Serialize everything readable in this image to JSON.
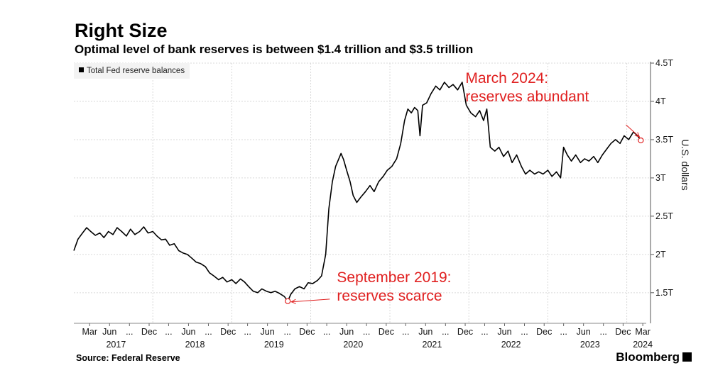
{
  "title": "Right Size",
  "subtitle": "Optimal level of bank reserves is between $1.4 trillion and $3.5 trillion",
  "legend_label": "Total Fed reserve balances",
  "source": "Source: Federal Reserve",
  "brand": "Bloomberg",
  "colors": {
    "line": "#000000",
    "annotation": "#e02020",
    "grid": "#d9d9d9"
  },
  "chart_data": {
    "type": "line",
    "title": "Right Size",
    "subtitle": "Optimal level of bank reserves is between $1.4 trillion and $3.5 trillion",
    "ylabel": "U.S. dollars",
    "ylim": [
      1.1,
      4.5
    ],
    "y_ticks": [
      1.5,
      2,
      2.5,
      3,
      3.5,
      4,
      4.5
    ],
    "y_tick_labels": [
      "1.5T",
      "2T",
      "2.5T",
      "3T",
      "3.5T",
      "4T",
      "4.5T"
    ],
    "y_axis_side": "right",
    "grid": true,
    "legend_position": "top-left",
    "x_range": [
      "2017-01-01",
      "2024-03-31"
    ],
    "month_ticks": [
      {
        "label": "Mar",
        "date": "2017-03"
      },
      {
        "label": "Jun",
        "date": "2017-06"
      },
      {
        "label": "...",
        "date": "2017-09"
      },
      {
        "label": "Dec",
        "date": "2017-12"
      },
      {
        "label": "...",
        "date": "2018-03"
      },
      {
        "label": "Jun",
        "date": "2018-06"
      },
      {
        "label": "...",
        "date": "2018-09"
      },
      {
        "label": "Dec",
        "date": "2018-12"
      },
      {
        "label": "...",
        "date": "2019-03"
      },
      {
        "label": "Jun",
        "date": "2019-06"
      },
      {
        "label": "...",
        "date": "2019-09"
      },
      {
        "label": "Dec",
        "date": "2019-12"
      },
      {
        "label": "...",
        "date": "2020-03"
      },
      {
        "label": "Jun",
        "date": "2020-06"
      },
      {
        "label": "...",
        "date": "2020-09"
      },
      {
        "label": "Dec",
        "date": "2020-12"
      },
      {
        "label": "...",
        "date": "2021-03"
      },
      {
        "label": "Jun",
        "date": "2021-06"
      },
      {
        "label": "...",
        "date": "2021-09"
      },
      {
        "label": "Dec",
        "date": "2021-12"
      },
      {
        "label": "...",
        "date": "2022-03"
      },
      {
        "label": "Jun",
        "date": "2022-06"
      },
      {
        "label": "...",
        "date": "2022-09"
      },
      {
        "label": "Dec",
        "date": "2022-12"
      },
      {
        "label": "...",
        "date": "2023-03"
      },
      {
        "label": "Jun",
        "date": "2023-06"
      },
      {
        "label": "...",
        "date": "2023-09"
      },
      {
        "label": "Dec",
        "date": "2023-12"
      },
      {
        "label": "Mar",
        "date": "2024-03"
      }
    ],
    "year_ticks": [
      {
        "label": "2017",
        "date": "2017-07"
      },
      {
        "label": "2018",
        "date": "2018-07"
      },
      {
        "label": "2019",
        "date": "2019-07"
      },
      {
        "label": "2020",
        "date": "2020-07"
      },
      {
        "label": "2021",
        "date": "2021-07"
      },
      {
        "label": "2022",
        "date": "2022-07"
      },
      {
        "label": "2023",
        "date": "2023-07"
      },
      {
        "label": "2024",
        "date": "2024-03"
      }
    ],
    "series": [
      {
        "name": "Total Fed reserve balances",
        "points": [
          [
            "2017-01-01",
            2.05
          ],
          [
            "2017-01-20",
            2.2
          ],
          [
            "2017-02-10",
            2.28
          ],
          [
            "2017-03-01",
            2.35
          ],
          [
            "2017-03-20",
            2.3
          ],
          [
            "2017-04-10",
            2.25
          ],
          [
            "2017-05-01",
            2.28
          ],
          [
            "2017-05-20",
            2.22
          ],
          [
            "2017-06-10",
            2.3
          ],
          [
            "2017-07-01",
            2.26
          ],
          [
            "2017-07-20",
            2.35
          ],
          [
            "2017-08-10",
            2.3
          ],
          [
            "2017-09-01",
            2.24
          ],
          [
            "2017-09-20",
            2.33
          ],
          [
            "2017-10-10",
            2.26
          ],
          [
            "2017-11-01",
            2.3
          ],
          [
            "2017-11-20",
            2.36
          ],
          [
            "2017-12-10",
            2.28
          ],
          [
            "2018-01-01",
            2.3
          ],
          [
            "2018-01-20",
            2.24
          ],
          [
            "2018-02-10",
            2.19
          ],
          [
            "2018-03-01",
            2.2
          ],
          [
            "2018-03-20",
            2.12
          ],
          [
            "2018-04-10",
            2.14
          ],
          [
            "2018-05-01",
            2.05
          ],
          [
            "2018-05-20",
            2.02
          ],
          [
            "2018-06-10",
            2.0
          ],
          [
            "2018-07-01",
            1.95
          ],
          [
            "2018-07-20",
            1.9
          ],
          [
            "2018-08-10",
            1.88
          ],
          [
            "2018-09-01",
            1.84
          ],
          [
            "2018-09-20",
            1.76
          ],
          [
            "2018-10-10",
            1.72
          ],
          [
            "2018-11-01",
            1.67
          ],
          [
            "2018-11-20",
            1.7
          ],
          [
            "2018-12-10",
            1.64
          ],
          [
            "2019-01-01",
            1.67
          ],
          [
            "2019-01-20",
            1.62
          ],
          [
            "2019-02-10",
            1.68
          ],
          [
            "2019-03-01",
            1.64
          ],
          [
            "2019-03-20",
            1.58
          ],
          [
            "2019-04-10",
            1.52
          ],
          [
            "2019-05-01",
            1.5
          ],
          [
            "2019-05-20",
            1.55
          ],
          [
            "2019-06-10",
            1.52
          ],
          [
            "2019-07-01",
            1.5
          ],
          [
            "2019-07-20",
            1.52
          ],
          [
            "2019-08-10",
            1.49
          ],
          [
            "2019-09-01",
            1.45
          ],
          [
            "2019-09-17",
            1.39
          ],
          [
            "2019-10-01",
            1.48
          ],
          [
            "2019-10-20",
            1.55
          ],
          [
            "2019-11-10",
            1.58
          ],
          [
            "2019-12-01",
            1.55
          ],
          [
            "2019-12-20",
            1.63
          ],
          [
            "2020-01-10",
            1.62
          ],
          [
            "2020-02-01",
            1.66
          ],
          [
            "2020-02-20",
            1.72
          ],
          [
            "2020-03-10",
            2.0
          ],
          [
            "2020-03-25",
            2.6
          ],
          [
            "2020-04-10",
            2.95
          ],
          [
            "2020-04-25",
            3.15
          ],
          [
            "2020-05-10",
            3.25
          ],
          [
            "2020-05-20",
            3.32
          ],
          [
            "2020-06-01",
            3.24
          ],
          [
            "2020-06-15",
            3.1
          ],
          [
            "2020-07-01",
            2.95
          ],
          [
            "2020-07-15",
            2.77
          ],
          [
            "2020-08-01",
            2.68
          ],
          [
            "2020-08-20",
            2.75
          ],
          [
            "2020-09-10",
            2.82
          ],
          [
            "2020-10-01",
            2.9
          ],
          [
            "2020-10-20",
            2.82
          ],
          [
            "2020-11-10",
            2.95
          ],
          [
            "2020-12-01",
            3.02
          ],
          [
            "2020-12-20",
            3.1
          ],
          [
            "2021-01-10",
            3.15
          ],
          [
            "2021-02-01",
            3.25
          ],
          [
            "2021-02-20",
            3.45
          ],
          [
            "2021-03-10",
            3.75
          ],
          [
            "2021-03-25",
            3.9
          ],
          [
            "2021-04-10",
            3.85
          ],
          [
            "2021-04-25",
            3.92
          ],
          [
            "2021-05-10",
            3.88
          ],
          [
            "2021-05-20",
            3.55
          ],
          [
            "2021-06-01",
            3.95
          ],
          [
            "2021-06-20",
            3.98
          ],
          [
            "2021-07-10",
            4.1
          ],
          [
            "2021-08-01",
            4.2
          ],
          [
            "2021-08-20",
            4.15
          ],
          [
            "2021-09-10",
            4.25
          ],
          [
            "2021-10-01",
            4.18
          ],
          [
            "2021-10-20",
            4.22
          ],
          [
            "2021-11-10",
            4.15
          ],
          [
            "2021-12-01",
            4.25
          ],
          [
            "2021-12-20",
            3.95
          ],
          [
            "2022-01-10",
            3.85
          ],
          [
            "2022-02-01",
            3.8
          ],
          [
            "2022-02-20",
            3.88
          ],
          [
            "2022-03-10",
            3.75
          ],
          [
            "2022-03-25",
            3.9
          ],
          [
            "2022-04-10",
            3.4
          ],
          [
            "2022-05-01",
            3.35
          ],
          [
            "2022-05-20",
            3.4
          ],
          [
            "2022-06-10",
            3.28
          ],
          [
            "2022-07-01",
            3.35
          ],
          [
            "2022-07-20",
            3.2
          ],
          [
            "2022-08-10",
            3.3
          ],
          [
            "2022-09-01",
            3.15
          ],
          [
            "2022-09-20",
            3.05
          ],
          [
            "2022-10-10",
            3.1
          ],
          [
            "2022-11-01",
            3.05
          ],
          [
            "2022-11-20",
            3.08
          ],
          [
            "2022-12-10",
            3.05
          ],
          [
            "2023-01-01",
            3.1
          ],
          [
            "2023-01-20",
            3.02
          ],
          [
            "2023-02-10",
            3.08
          ],
          [
            "2023-03-01",
            3.0
          ],
          [
            "2023-03-15",
            3.4
          ],
          [
            "2023-04-01",
            3.3
          ],
          [
            "2023-04-20",
            3.22
          ],
          [
            "2023-05-10",
            3.3
          ],
          [
            "2023-06-01",
            3.2
          ],
          [
            "2023-06-20",
            3.25
          ],
          [
            "2023-07-10",
            3.22
          ],
          [
            "2023-08-01",
            3.28
          ],
          [
            "2023-08-20",
            3.2
          ],
          [
            "2023-09-10",
            3.3
          ],
          [
            "2023-10-01",
            3.38
          ],
          [
            "2023-10-20",
            3.45
          ],
          [
            "2023-11-10",
            3.5
          ],
          [
            "2023-12-01",
            3.45
          ],
          [
            "2023-12-20",
            3.55
          ],
          [
            "2024-01-10",
            3.5
          ],
          [
            "2024-02-01",
            3.6
          ],
          [
            "2024-02-20",
            3.55
          ],
          [
            "2024-03-06",
            3.49
          ]
        ]
      }
    ],
    "annotations": [
      {
        "text_lines": [
          "September 2019:",
          "reserves scarce"
        ],
        "point": [
          "2019-09-17",
          1.39
        ],
        "text_anchor": [
          "2020-05-01",
          1.49
        ]
      },
      {
        "text_lines": [
          "March 2024:",
          "reserves abundant"
        ],
        "point": [
          "2024-03-06",
          3.49
        ],
        "text_anchor": [
          "2023-12-15",
          3.62
        ]
      }
    ]
  }
}
